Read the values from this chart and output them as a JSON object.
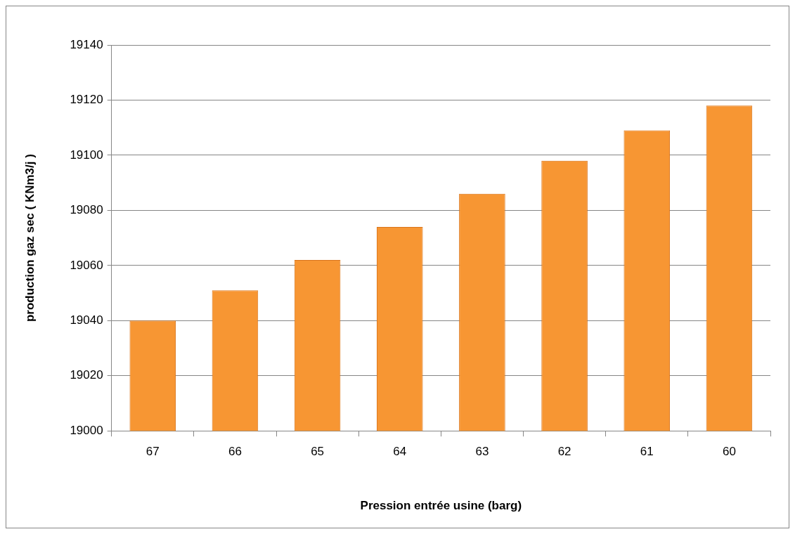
{
  "chart_data": {
    "type": "bar",
    "xlabel": "Pression entrée usine (barg)",
    "ylabel": "production gaz sec ( KNm3/j )",
    "categories": [
      "67",
      "66",
      "65",
      "64",
      "63",
      "62",
      "61",
      "60"
    ],
    "values": [
      19040,
      19051,
      19062,
      19074,
      19086,
      19098,
      19109,
      19118
    ],
    "color": "#f79633",
    "ylim": [
      19000,
      19140
    ],
    "yticks": [
      19000,
      19020,
      19040,
      19060,
      19080,
      19100,
      19120,
      19140
    ],
    "grid": "y",
    "legend": false
  }
}
